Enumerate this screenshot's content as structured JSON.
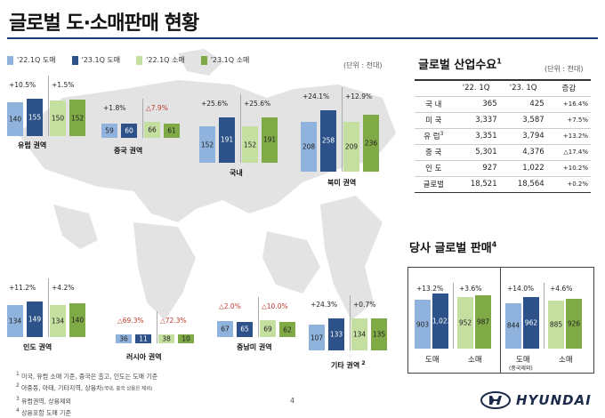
{
  "page": {
    "title": "글로벌 도·소매판매 현황",
    "page_number": "4"
  },
  "legend": {
    "items": [
      {
        "label": "'22.1Q 도매",
        "color": "#8fb3dd"
      },
      {
        "label": "'23.1Q 도매",
        "color": "#2d5289"
      },
      {
        "label": "'22.1Q 소매",
        "color": "#c4df9f"
      },
      {
        "label": "'23.1Q 소매",
        "color": "#7faa46"
      }
    ]
  },
  "unit_left": "(단위 : 천대)",
  "unit_right": "(단위 : 천대)",
  "chart_data": [
    {
      "type": "bar",
      "region": "유럽 권역",
      "series_order": [
        "'22.1Q 도매",
        "'23.1Q 도매",
        "'22.1Q 소매",
        "'23.1Q 소매"
      ],
      "values": [
        140,
        155,
        150,
        152
      ],
      "wholesale_change": "+10.5%",
      "retail_change": "+1.5%"
    },
    {
      "type": "bar",
      "region": "중국 권역",
      "series_order": [
        "'22.1Q 도매",
        "'23.1Q 도매",
        "'22.1Q 소매",
        "'23.1Q 소매"
      ],
      "values": [
        59,
        60,
        66,
        61
      ],
      "wholesale_change": "+1.8%",
      "retail_change": "△7.9%"
    },
    {
      "type": "bar",
      "region": "국내",
      "series_order": [
        "'22.1Q 도매",
        "'23.1Q 도매",
        "'22.1Q 소매",
        "'23.1Q 소매"
      ],
      "values": [
        152,
        191,
        152,
        191
      ],
      "wholesale_change": "+25.6%",
      "retail_change": "+25.6%"
    },
    {
      "type": "bar",
      "region": "북미 권역",
      "series_order": [
        "'22.1Q 도매",
        "'23.1Q 도매",
        "'22.1Q 소매",
        "'23.1Q 소매"
      ],
      "values": [
        208,
        258,
        209,
        236
      ],
      "wholesale_change": "+24.1%",
      "retail_change": "+12.9%"
    },
    {
      "type": "bar",
      "region": "인도 권역",
      "series_order": [
        "'22.1Q 도매",
        "'23.1Q 도매",
        "'22.1Q 소매",
        "'23.1Q 소매"
      ],
      "values": [
        134,
        149,
        134,
        140
      ],
      "wholesale_change": "+11.2%",
      "retail_change": "+4.2%"
    },
    {
      "type": "bar",
      "region": "러시아 권역",
      "series_order": [
        "'22.1Q 도매",
        "'23.1Q 도매",
        "'22.1Q 소매",
        "'23.1Q 소매"
      ],
      "values": [
        36,
        11,
        38,
        10
      ],
      "wholesale_change": "△69.3%",
      "retail_change": "△72.3%"
    },
    {
      "type": "bar",
      "region": "중남미 권역",
      "series_order": [
        "'22.1Q 도매",
        "'23.1Q 도매",
        "'22.1Q 소매",
        "'23.1Q 소매"
      ],
      "values": [
        67,
        65,
        69,
        62
      ],
      "wholesale_change": "△2.0%",
      "retail_change": "△10.0%"
    },
    {
      "type": "bar",
      "region": "기타 권역",
      "region_sup": "2",
      "series_order": [
        "'22.1Q 도매",
        "'23.1Q 도매",
        "'22.1Q 소매",
        "'23.1Q 소매"
      ],
      "values": [
        107,
        133,
        134,
        135
      ],
      "wholesale_change": "+24.3%",
      "retail_change": "+0.7%"
    },
    {
      "type": "bar",
      "title": "당사 글로벌 판매",
      "title_sup": "4",
      "groups": [
        {
          "label": "도매",
          "sublabel": "",
          "values": [
            903,
            1022
          ],
          "change": "+13.2%"
        },
        {
          "label": "소매",
          "sublabel": "",
          "values": [
            952,
            987
          ],
          "change": "+3.6%"
        },
        {
          "label": "도매",
          "sublabel": "(중국제외)",
          "values": [
            844,
            962
          ],
          "change": "+14.0%"
        },
        {
          "label": "소매",
          "sublabel": "",
          "values": [
            885,
            926
          ],
          "change": "+4.6%"
        }
      ]
    },
    {
      "type": "table",
      "title": "글로벌 산업수요",
      "title_sup": "1",
      "columns": [
        "'22. 1Q",
        "'23. 1Q",
        "증감"
      ],
      "rows": [
        {
          "name": "국 내",
          "sup": "",
          "v22": "365",
          "v23": "425",
          "chg": "+16.4%"
        },
        {
          "name": "미 국",
          "sup": "",
          "v22": "3,337",
          "v23": "3,587",
          "chg": "+7.5%"
        },
        {
          "name": "유 럽",
          "sup": "3",
          "v22": "3,351",
          "v23": "3,794",
          "chg": "+13.2%"
        },
        {
          "name": "중 국",
          "sup": "",
          "v22": "5,301",
          "v23": "4,376",
          "chg": "△17.4%"
        },
        {
          "name": "인 도",
          "sup": "",
          "v22": "927",
          "v23": "1,022",
          "chg": "+10.2%"
        }
      ],
      "total": {
        "name": "글로벌",
        "v22": "18,521",
        "v23": "18,564",
        "chg": "+0.2%"
      }
    }
  ],
  "notes": [
    {
      "sup": "1",
      "text": "미국, 유럽 소매 기준, 중국은 출고, 인도는 도매 기준"
    },
    {
      "sup": "2",
      "text": "아중동, 아태, 기타지역, 상용차",
      "small": "(국내, 중국 상용은 제외)"
    },
    {
      "sup": "3",
      "text": "유럽권역, 상용제외"
    },
    {
      "sup": "4",
      "text": "상용포함 도매 기준"
    }
  ],
  "brand": {
    "name": "HYUNDAI"
  }
}
